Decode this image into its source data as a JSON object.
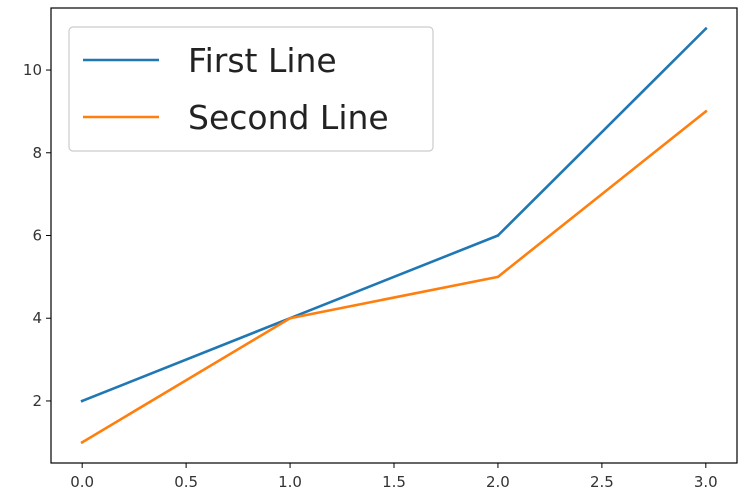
{
  "chart_data": {
    "type": "line",
    "title": "",
    "xlabel": "",
    "ylabel": "",
    "x": [
      0,
      1,
      2,
      3
    ],
    "series": [
      {
        "name": "First Line",
        "values": [
          2,
          4,
          6,
          11
        ],
        "color": "#1f77b4"
      },
      {
        "name": "Second Line",
        "values": [
          1,
          4,
          5,
          9
        ],
        "color": "#ff7f0e"
      }
    ],
    "xlim": [
      -0.15,
      3.15
    ],
    "ylim": [
      0.5,
      11.5
    ],
    "xticks": [
      0.0,
      0.5,
      1.0,
      1.5,
      2.0,
      2.5,
      3.0
    ],
    "xtick_labels": [
      "0.0",
      "0.5",
      "1.0",
      "1.5",
      "2.0",
      "2.5",
      "3.0"
    ],
    "yticks": [
      2,
      4,
      6,
      8,
      10
    ],
    "ytick_labels": [
      "2",
      "4",
      "6",
      "8",
      "10"
    ],
    "grid": false,
    "legend": {
      "location": "upper left"
    }
  }
}
